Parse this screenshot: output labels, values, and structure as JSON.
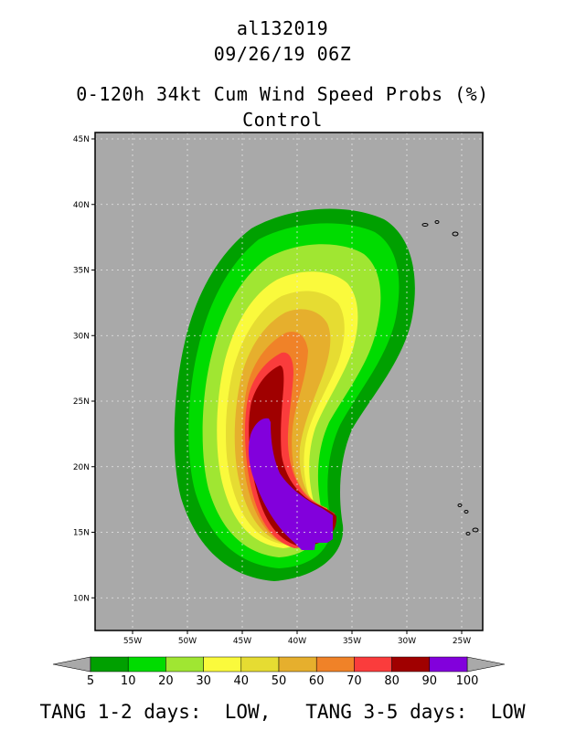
{
  "header": {
    "storm_id": "al132019",
    "datetime": "09/26/19 06Z",
    "title": "0-120h 34kt Cum Wind Speed Probs (%)",
    "subtitle": "Control"
  },
  "map": {
    "background_color": "#a9a9a9",
    "lat_labels": [
      "45N",
      "40N",
      "35N",
      "30N",
      "25N",
      "20N",
      "15N",
      "10N"
    ],
    "lon_labels": [
      "55W",
      "50W",
      "45W",
      "40W",
      "35W",
      "30W",
      "25W"
    ]
  },
  "colorbar": {
    "levels": [
      "5",
      "10",
      "20",
      "30",
      "40",
      "50",
      "60",
      "70",
      "80",
      "90",
      "100"
    ],
    "colors": [
      "#00a000",
      "#00dc00",
      "#a0e632",
      "#fafa3c",
      "#e6dc32",
      "#e6af2d",
      "#f08228",
      "#fa3c3c",
      "#a00000",
      "#8200dc"
    ]
  },
  "footer": {
    "text": "TANG 1-2 days:  LOW,   TANG 3-5 days:  LOW"
  }
}
